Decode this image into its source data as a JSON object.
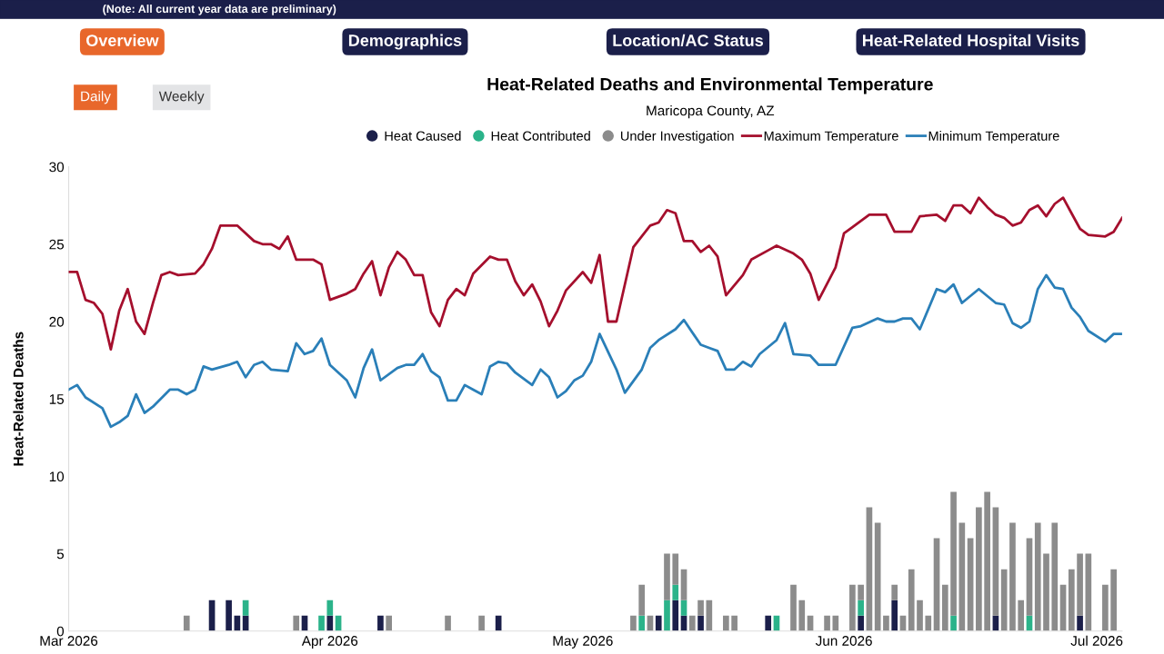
{
  "chart_data": {
    "type": "bar",
    "title": "Heat-Related Deaths and Environmental Temperature",
    "subtitle": "Maricopa County, AZ",
    "ylabel": "Heat-Related Deaths",
    "annotations": [
      "(Note: All current year data are preliminary)",
      "Overview",
      "Demographics",
      "Location/AC Status",
      "Heat-Related Hospital Visits",
      "Daily",
      "Weekly"
    ],
    "stacked": true,
    "legend": "top",
    "grid": false,
    "xlim": [
      "2026-03-01",
      "2026-07-04"
    ],
    "xticks": [
      {
        "value": "2026-03-01",
        "label": "Mar 2026"
      },
      {
        "value": "2026-04-01",
        "label": "Apr 2026"
      },
      {
        "value": "2026-05-01",
        "label": "May 2026"
      },
      {
        "value": "2026-06-01",
        "label": "Jun 2026"
      },
      {
        "value": "2026-07-01",
        "label": "Jul 2026"
      }
    ],
    "ylim": [
      0,
      30
    ],
    "yticks": [
      0,
      5,
      10,
      15,
      20,
      25,
      30
    ],
    "x": [
      "2026-03-15",
      "2026-03-18",
      "2026-03-20",
      "2026-03-21",
      "2026-03-22",
      "2026-03-28",
      "2026-03-29",
      "2026-03-31",
      "2026-04-01",
      "2026-04-02",
      "2026-04-07",
      "2026-04-08",
      "2026-04-15",
      "2026-04-19",
      "2026-04-21",
      "2026-05-07",
      "2026-05-08",
      "2026-05-09",
      "2026-05-10",
      "2026-05-11",
      "2026-05-12",
      "2026-05-13",
      "2026-05-14",
      "2026-05-15",
      "2026-05-16",
      "2026-05-18",
      "2026-05-19",
      "2026-05-23",
      "2026-05-24",
      "2026-05-26",
      "2026-05-27",
      "2026-05-28",
      "2026-05-30",
      "2026-05-31",
      "2026-06-02",
      "2026-06-03",
      "2026-06-04",
      "2026-06-05",
      "2026-06-06",
      "2026-06-07",
      "2026-06-08",
      "2026-06-09",
      "2026-06-10",
      "2026-06-11",
      "2026-06-12",
      "2026-06-13",
      "2026-06-14",
      "2026-06-15",
      "2026-06-16",
      "2026-06-17",
      "2026-06-18",
      "2026-06-19",
      "2026-06-20",
      "2026-06-21",
      "2026-06-22",
      "2026-06-23",
      "2026-06-24",
      "2026-06-25",
      "2026-06-26",
      "2026-06-27",
      "2026-06-28",
      "2026-06-29",
      "2026-06-30",
      "2026-07-02",
      "2026-07-03"
    ],
    "series": [
      {
        "name": "Heat Caused",
        "color": "#1b1f4a",
        "values": [
          0,
          2,
          2,
          1,
          1,
          0,
          1,
          0,
          1,
          0,
          1,
          0,
          0,
          0,
          1,
          0,
          0,
          0,
          1,
          0,
          2,
          1,
          0,
          1,
          0,
          0,
          0,
          1,
          0,
          0,
          0,
          0,
          0,
          0,
          0,
          1,
          0,
          0,
          0,
          2,
          0,
          0,
          0,
          0,
          0,
          0,
          0,
          0,
          0,
          0,
          0,
          1,
          0,
          0,
          0,
          0,
          0,
          0,
          0,
          0,
          0,
          1,
          0,
          0,
          0
        ]
      },
      {
        "name": "Heat Contributed",
        "color": "#2bb38a",
        "values": [
          0,
          0,
          0,
          0,
          1,
          0,
          0,
          1,
          1,
          1,
          0,
          0,
          0,
          0,
          0,
          0,
          1,
          0,
          0,
          2,
          1,
          1,
          0,
          0,
          0,
          0,
          0,
          0,
          1,
          0,
          0,
          0,
          0,
          0,
          0,
          1,
          0,
          0,
          0,
          0,
          0,
          0,
          0,
          0,
          0,
          0,
          1,
          0,
          0,
          0,
          0,
          0,
          0,
          0,
          0,
          1,
          0,
          0,
          0,
          0,
          0,
          0,
          0,
          0,
          0
        ]
      },
      {
        "name": "Under Investigation",
        "color": "#8c8c8c",
        "values": [
          1,
          0,
          0,
          0,
          0,
          1,
          0,
          0,
          0,
          0,
          0,
          1,
          1,
          1,
          0,
          1,
          2,
          1,
          0,
          3,
          2,
          2,
          1,
          1,
          2,
          1,
          1,
          0,
          0,
          3,
          2,
          1,
          1,
          1,
          3,
          1,
          8,
          7,
          1,
          1,
          1,
          4,
          2,
          1,
          6,
          3,
          8,
          7,
          6,
          8,
          9,
          7,
          4,
          7,
          2,
          5,
          7,
          5,
          7,
          3,
          4,
          4,
          5,
          3,
          4
        ]
      },
      {
        "name": "Maximum Temperature",
        "type": "line",
        "color": "#a50f2d",
        "x": [
          "2026-03-01",
          "2026-03-02",
          "2026-03-03",
          "2026-03-04",
          "2026-03-05",
          "2026-03-06",
          "2026-03-07",
          "2026-03-08",
          "2026-03-09",
          "2026-03-10",
          "2026-03-11",
          "2026-03-12",
          "2026-03-13",
          "2026-03-14",
          "2026-03-16",
          "2026-03-17",
          "2026-03-18",
          "2026-03-19",
          "2026-03-21",
          "2026-03-23",
          "2026-03-24",
          "2026-03-25",
          "2026-03-26",
          "2026-03-27",
          "2026-03-28",
          "2026-03-30",
          "2026-03-31",
          "2026-04-01",
          "2026-04-03",
          "2026-04-04",
          "2026-04-05",
          "2026-04-06",
          "2026-04-07",
          "2026-04-08",
          "2026-04-09",
          "2026-04-10",
          "2026-04-11",
          "2026-04-12",
          "2026-04-13",
          "2026-04-14",
          "2026-04-15",
          "2026-04-16",
          "2026-04-17",
          "2026-04-18",
          "2026-04-20",
          "2026-04-21",
          "2026-04-22",
          "2026-04-23",
          "2026-04-24",
          "2026-04-25",
          "2026-04-26",
          "2026-04-27",
          "2026-04-28",
          "2026-04-29",
          "2026-05-01",
          "2026-05-02",
          "2026-05-03",
          "2026-05-04",
          "2026-05-05",
          "2026-05-07",
          "2026-05-09",
          "2026-05-10",
          "2026-05-11",
          "2026-05-12",
          "2026-05-13",
          "2026-05-14",
          "2026-05-15",
          "2026-05-16",
          "2026-05-17",
          "2026-05-18",
          "2026-05-20",
          "2026-05-21",
          "2026-05-23",
          "2026-05-24",
          "2026-05-26",
          "2026-05-27",
          "2026-05-28",
          "2026-05-29",
          "2026-05-31",
          "2026-06-01",
          "2026-06-02",
          "2026-06-04",
          "2026-06-06",
          "2026-06-07",
          "2026-06-09",
          "2026-06-10",
          "2026-06-12",
          "2026-06-13",
          "2026-06-14",
          "2026-06-15",
          "2026-06-16",
          "2026-06-17",
          "2026-06-18",
          "2026-06-19",
          "2026-06-20",
          "2026-06-21",
          "2026-06-22",
          "2026-06-23",
          "2026-06-24",
          "2026-06-25",
          "2026-06-26",
          "2026-06-27",
          "2026-06-28",
          "2026-06-29",
          "2026-06-30",
          "2026-07-02",
          "2026-07-03",
          "2026-07-04"
        ],
        "values": [
          23.2,
          23.2,
          21.4,
          21.2,
          20.5,
          18.2,
          20.7,
          22.1,
          20.0,
          19.2,
          21.2,
          23.0,
          23.2,
          23.0,
          23.1,
          23.7,
          24.7,
          26.2,
          26.2,
          25.2,
          25.0,
          25.0,
          24.7,
          25.5,
          24.0,
          24.0,
          23.7,
          21.4,
          21.8,
          22.1,
          23.1,
          23.9,
          21.7,
          23.5,
          24.5,
          24.0,
          23.0,
          23.0,
          20.6,
          19.7,
          21.4,
          22.1,
          21.7,
          23.1,
          24.2,
          24.0,
          24.0,
          22.6,
          21.7,
          22.4,
          21.3,
          19.7,
          20.7,
          22.0,
          23.2,
          22.5,
          24.3,
          20.0,
          20.0,
          24.8,
          26.2,
          26.4,
          27.2,
          27.0,
          25.2,
          25.2,
          24.5,
          24.9,
          24.2,
          21.7,
          23.0,
          24.0,
          24.6,
          24.9,
          24.4,
          24.0,
          23.1,
          21.4,
          23.5,
          25.7,
          26.1,
          26.9,
          26.9,
          25.8,
          25.8,
          26.8,
          26.9,
          26.5,
          27.5,
          27.5,
          27.0,
          28.0,
          27.4,
          26.9,
          26.7,
          26.2,
          26.4,
          27.2,
          27.5,
          26.8,
          27.6,
          28.0,
          27.0,
          26.0,
          25.6,
          25.5,
          25.8,
          26.7
        ]
      },
      {
        "name": "Minimum Temperature",
        "type": "line",
        "color": "#2a7fb8",
        "x": [
          "2026-03-01",
          "2026-03-02",
          "2026-03-03",
          "2026-03-05",
          "2026-03-06",
          "2026-03-07",
          "2026-03-08",
          "2026-03-09",
          "2026-03-10",
          "2026-03-11",
          "2026-03-13",
          "2026-03-14",
          "2026-03-15",
          "2026-03-16",
          "2026-03-17",
          "2026-03-18",
          "2026-03-20",
          "2026-03-21",
          "2026-03-22",
          "2026-03-23",
          "2026-03-24",
          "2026-03-25",
          "2026-03-27",
          "2026-03-28",
          "2026-03-29",
          "2026-03-30",
          "2026-03-31",
          "2026-04-01",
          "2026-04-03",
          "2026-04-04",
          "2026-04-05",
          "2026-04-06",
          "2026-04-07",
          "2026-04-09",
          "2026-04-10",
          "2026-04-11",
          "2026-04-12",
          "2026-04-13",
          "2026-04-14",
          "2026-04-15",
          "2026-04-16",
          "2026-04-17",
          "2026-04-18",
          "2026-04-19",
          "2026-04-20",
          "2026-04-21",
          "2026-04-22",
          "2026-04-23",
          "2026-04-25",
          "2026-04-26",
          "2026-04-27",
          "2026-04-28",
          "2026-04-29",
          "2026-04-30",
          "2026-05-01",
          "2026-05-02",
          "2026-05-03",
          "2026-05-05",
          "2026-05-06",
          "2026-05-08",
          "2026-05-09",
          "2026-05-10",
          "2026-05-12",
          "2026-05-13",
          "2026-05-15",
          "2026-05-16",
          "2026-05-17",
          "2026-05-18",
          "2026-05-19",
          "2026-05-20",
          "2026-05-21",
          "2026-05-22",
          "2026-05-24",
          "2026-05-25",
          "2026-05-26",
          "2026-05-28",
          "2026-05-29",
          "2026-05-31",
          "2026-06-02",
          "2026-06-03",
          "2026-06-05",
          "2026-06-06",
          "2026-06-07",
          "2026-06-08",
          "2026-06-09",
          "2026-06-10",
          "2026-06-12",
          "2026-06-13",
          "2026-06-14",
          "2026-06-15",
          "2026-06-17",
          "2026-06-19",
          "2026-06-20",
          "2026-06-21",
          "2026-06-22",
          "2026-06-23",
          "2026-06-24",
          "2026-06-25",
          "2026-06-26",
          "2026-06-27",
          "2026-06-28",
          "2026-06-29",
          "2026-06-30",
          "2026-07-02",
          "2026-07-03",
          "2026-07-04"
        ],
        "values": [
          15.6,
          15.9,
          15.1,
          14.4,
          13.2,
          13.5,
          13.9,
          15.3,
          14.1,
          14.5,
          15.6,
          15.6,
          15.3,
          15.6,
          17.1,
          16.9,
          17.2,
          17.4,
          16.4,
          17.2,
          17.4,
          16.9,
          16.8,
          18.6,
          17.9,
          18.1,
          18.9,
          17.2,
          16.2,
          15.1,
          17.0,
          18.2,
          16.2,
          17.0,
          17.2,
          17.2,
          17.9,
          16.8,
          16.4,
          14.9,
          14.9,
          15.9,
          15.6,
          15.3,
          17.1,
          17.4,
          17.3,
          16.7,
          15.9,
          16.9,
          16.4,
          15.1,
          15.5,
          16.2,
          16.5,
          17.4,
          19.2,
          16.9,
          15.4,
          16.9,
          18.3,
          18.8,
          19.5,
          20.1,
          18.5,
          18.3,
          18.1,
          16.9,
          16.9,
          17.4,
          17.1,
          17.9,
          18.8,
          19.9,
          17.9,
          17.8,
          17.2,
          17.2,
          19.6,
          19.7,
          20.2,
          20.0,
          20.0,
          20.2,
          20.2,
          19.5,
          22.1,
          21.9,
          22.4,
          21.2,
          22.1,
          21.2,
          21.1,
          19.9,
          19.6,
          20.0,
          22.1,
          23.0,
          22.2,
          22.1,
          20.9,
          20.3,
          19.4,
          18.7,
          19.2,
          19.2
        ]
      }
    ]
  }
}
